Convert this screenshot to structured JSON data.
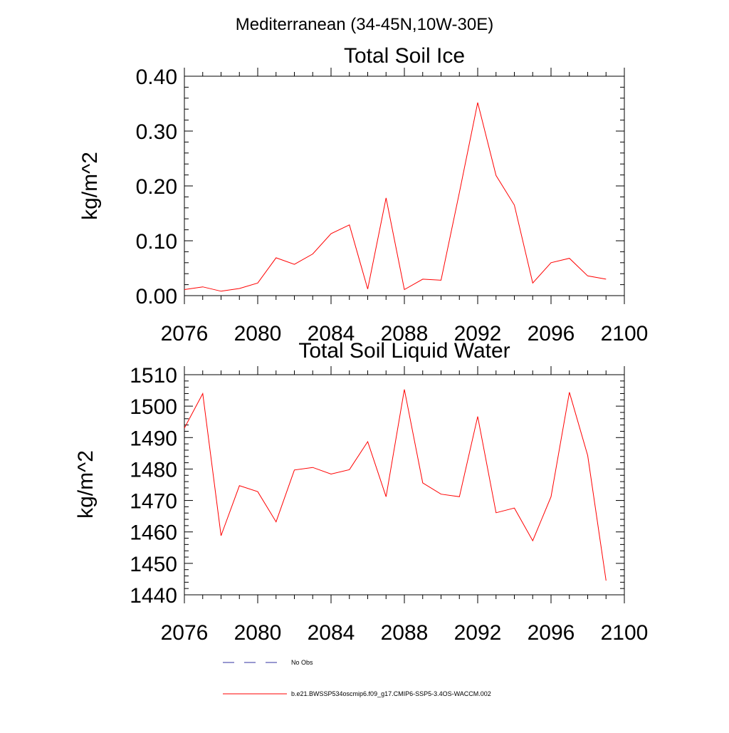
{
  "figure": {
    "title": "Mediterranean (34-45N,10W-30E)"
  },
  "chart_data": [
    {
      "type": "line",
      "title": "Total Soil Ice",
      "xlabel": "",
      "ylabel": "kg/m^2",
      "xlim": [
        2076,
        2100
      ],
      "ylim": [
        0,
        0.4
      ],
      "x_ticks": [
        "2076",
        "2080",
        "2084",
        "2088",
        "2092",
        "2096",
        "2100"
      ],
      "y_ticks": [
        "0.00",
        "0.10",
        "0.20",
        "0.30",
        "0.40"
      ],
      "x": [
        2076,
        2077,
        2078,
        2079,
        2080,
        2081,
        2082,
        2083,
        2084,
        2085,
        2086,
        2087,
        2088,
        2089,
        2090,
        2091,
        2092,
        2093,
        2094,
        2095,
        2096,
        2097,
        2098,
        2099
      ],
      "series": [
        {
          "name": "b.e21.BWSSP534oscmip6.f09_g17.CMIP6-SSP5-3.4OS-WACCM.002",
          "color": "#ff0000",
          "values": [
            0.011,
            0.016,
            0.008,
            0.013,
            0.023,
            0.069,
            0.057,
            0.076,
            0.113,
            0.129,
            0.012,
            0.178,
            0.011,
            0.03,
            0.028,
            0.188,
            0.352,
            0.219,
            0.165,
            0.023,
            0.06,
            0.068,
            0.036,
            0.03
          ]
        }
      ]
    },
    {
      "type": "line",
      "title": "Total Soil Liquid Water",
      "xlabel": "",
      "ylabel": "kg/m^2",
      "xlim": [
        2076,
        2100
      ],
      "ylim": [
        1440,
        1510
      ],
      "x_ticks": [
        "2076",
        "2080",
        "2084",
        "2088",
        "2092",
        "2096",
        "2100"
      ],
      "y_ticks": [
        "1440",
        "1450",
        "1460",
        "1470",
        "1480",
        "1490",
        "1500",
        "1510"
      ],
      "x": [
        2076,
        2077,
        2078,
        2079,
        2080,
        2081,
        2082,
        2083,
        2084,
        2085,
        2086,
        2087,
        2088,
        2089,
        2090,
        2091,
        2092,
        2093,
        2094,
        2095,
        2096,
        2097,
        2098,
        2099
      ],
      "series": [
        {
          "name": "b.e21.BWSSP534oscmip6.f09_g17.CMIP6-SSP5-3.4OS-WACCM.002",
          "color": "#ff0000",
          "values": [
            1493.0,
            1504.0,
            1458.8,
            1474.7,
            1472.8,
            1463.2,
            1479.7,
            1480.5,
            1478.4,
            1479.8,
            1488.7,
            1471.2,
            1505.3,
            1475.6,
            1472.0,
            1471.2,
            1496.7,
            1466.1,
            1467.6,
            1457.2,
            1471.2,
            1504.4,
            1484.3,
            1444.5
          ]
        }
      ]
    }
  ],
  "legend": {
    "items": [
      {
        "label": "No Obs",
        "color": "#3030a0",
        "dash": "dashed"
      },
      {
        "label": "b.e21.BWSSP534oscmip6.f09_g17.CMIP6-SSP5-3.4OS-WACCM.002",
        "color": "#ff0000",
        "dash": "solid"
      }
    ]
  }
}
